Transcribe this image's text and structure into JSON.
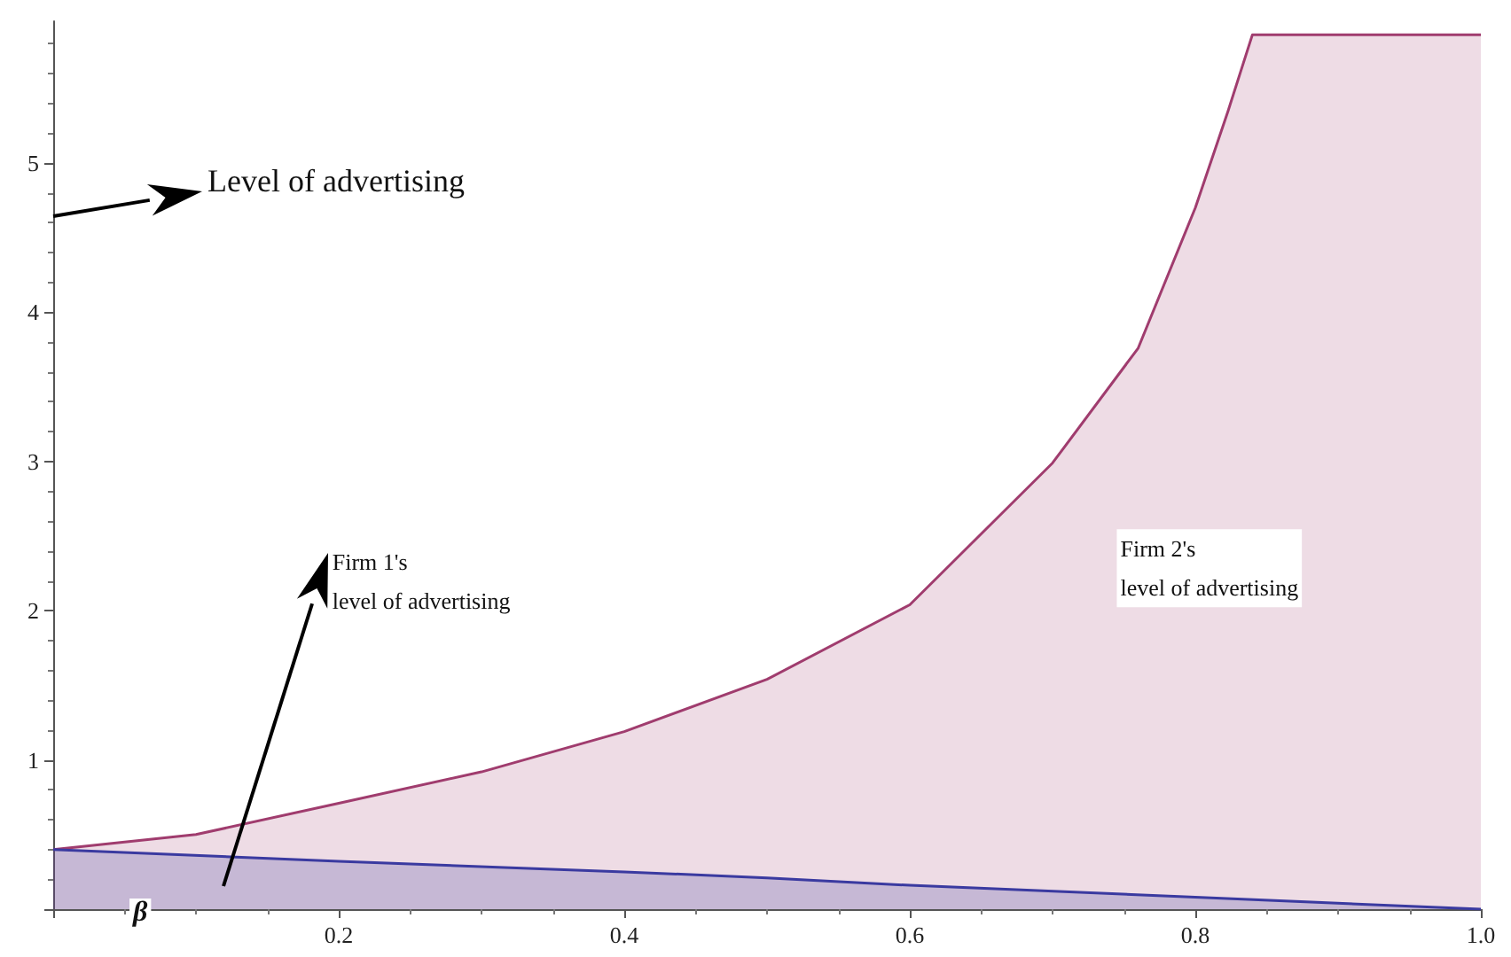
{
  "chart_data": {
    "type": "area",
    "xlabel": "β",
    "ylabel": "Level of advertising",
    "xlim": [
      0,
      1
    ],
    "ylim": [
      0,
      5.95
    ],
    "xticks": [
      {
        "value": 0,
        "label": null
      },
      0.2,
      0.4,
      0.6,
      0.8,
      {
        "value": 1,
        "label": "1.0"
      }
    ],
    "yticks": [
      {
        "value": 0,
        "label": null
      },
      1,
      2,
      3,
      4,
      5
    ],
    "grid": false,
    "legend": false,
    "marker": "none",
    "line_style": "solid",
    "series": [
      {
        "name": "Firm 2's\nlevel of advertising",
        "color": "#a03c6e",
        "x": [
          0,
          0.1,
          0.2,
          0.3,
          0.4,
          0.5,
          0.6,
          0.7,
          0.76,
          0.8,
          0.823,
          0.84,
          1
        ],
        "values": [
          0.4,
          0.5,
          0.71,
          0.92,
          1.19,
          1.54,
          2.04,
          2.99,
          3.76,
          4.7,
          5.35,
          5.86,
          5.86
        ]
      },
      {
        "name": "Firm 1's\nlevel of advertising",
        "color": "#3a3aa0",
        "x": [
          0,
          0.2,
          0.4,
          0.5,
          0.6,
          0.8,
          1
        ],
        "values": [
          0.4,
          0.32,
          0.25,
          0.21,
          0.16,
          0.08,
          0
        ]
      }
    ]
  }
}
